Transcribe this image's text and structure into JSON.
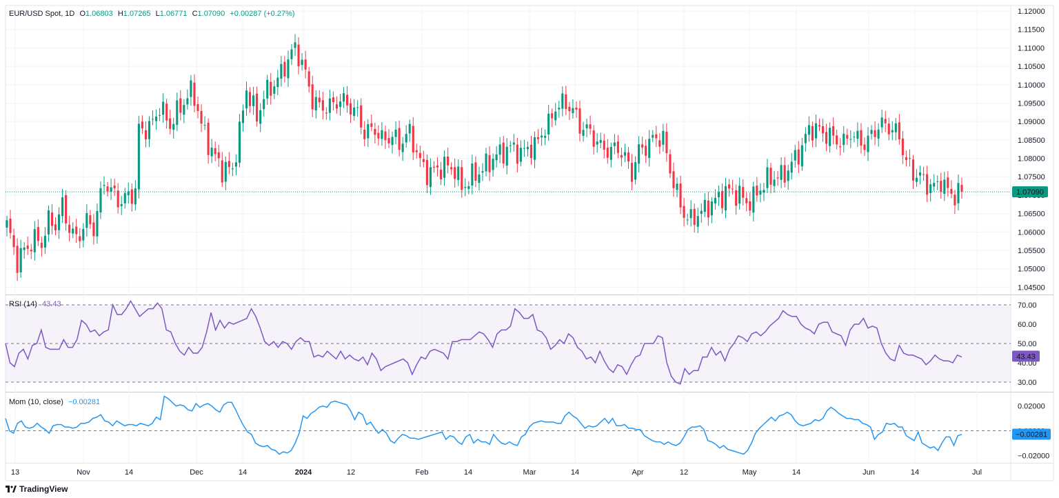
{
  "header": {
    "symbol": "EUR/USD Spot, 1D",
    "o_label": "O",
    "o_value": "1.06803",
    "h_label": "H",
    "h_value": "1.07265",
    "l_label": "L",
    "l_value": "1.06771",
    "c_label": "C",
    "c_value": "1.07090",
    "change": "+0.00287 (+0.27%)"
  },
  "rsi_legend": {
    "label": "RSI (14)",
    "value": "43.43"
  },
  "mom_legend": {
    "label": "Mom (10, close)",
    "value": "−0.00281"
  },
  "brand": {
    "name": "TradingView",
    "icon": "tradingview-logo-icon"
  },
  "colors": {
    "up": "#089981",
    "down": "#f23645",
    "rsi_line": "#7e57c2",
    "rsi_band": "#ede7f6",
    "mom_line": "#2196f3",
    "price_badge": "#089981",
    "mom_badge": "#2196f3",
    "rsi_badge": "#7e57c2"
  },
  "chart_data": [
    {
      "type": "candlestick",
      "title": "EUR/USD Spot, 1D",
      "x_tick_labels": [
        "13",
        "Nov",
        "14",
        "Dec",
        "14",
        "2024",
        "12",
        "Feb",
        "14",
        "Mar",
        "14",
        "Apr",
        "12",
        "May",
        "14",
        "Jun",
        "14",
        "Jul"
      ],
      "y_tick_labels": [
        "1.12000",
        "1.11500",
        "1.11000",
        "1.10500",
        "1.10000",
        "1.09500",
        "1.09000",
        "1.08500",
        "1.08000",
        "1.07500",
        "1.07000",
        "1.06500",
        "1.06000",
        "1.05500",
        "1.05000",
        "1.04500"
      ],
      "ylim": [
        1.043,
        1.1215
      ],
      "last_price": "1.07090",
      "grid": true,
      "anchors": [
        [
          0,
          1.062
        ],
        [
          3,
          1.052
        ],
        [
          5,
          1.055
        ],
        [
          8,
          1.058
        ],
        [
          10,
          1.057
        ],
        [
          12,
          1.063
        ],
        [
          14,
          1.062
        ],
        [
          16,
          1.067
        ],
        [
          18,
          1.061
        ],
        [
          20,
          1.058
        ],
        [
          23,
          1.063
        ],
        [
          25,
          1.061
        ],
        [
          28,
          1.074
        ],
        [
          30,
          1.071
        ],
        [
          33,
          1.068
        ],
        [
          35,
          1.07
        ],
        [
          37,
          1.071
        ],
        [
          38,
          1.088
        ],
        [
          41,
          1.088
        ],
        [
          44,
          1.094
        ],
        [
          47,
          1.089
        ],
        [
          50,
          1.094
        ],
        [
          53,
          1.098
        ],
        [
          54,
          1.097
        ],
        [
          56,
          1.089
        ],
        [
          59,
          1.082
        ],
        [
          62,
          1.077
        ],
        [
          65,
          1.077
        ],
        [
          67,
          1.087
        ],
        [
          69,
          1.099
        ],
        [
          72,
          1.091
        ],
        [
          74,
          1.097
        ],
        [
          76,
          1.099
        ],
        [
          79,
          1.103
        ],
        [
          81,
          1.107
        ],
        [
          83,
          1.11
        ],
        [
          85,
          1.106
        ],
        [
          88,
          1.096
        ],
        [
          90,
          1.094
        ],
        [
          93,
          1.094
        ],
        [
          96,
          1.096
        ],
        [
          99,
          1.094
        ],
        [
          101,
          1.092
        ],
        [
          103,
          1.087
        ],
        [
          106,
          1.088
        ],
        [
          108,
          1.085
        ],
        [
          111,
          1.086
        ],
        [
          113,
          1.084
        ],
        [
          116,
          1.087
        ],
        [
          119,
          1.079
        ],
        [
          121,
          1.076
        ],
        [
          124,
          1.077
        ],
        [
          126,
          1.078
        ],
        [
          129,
          1.077
        ],
        [
          131,
          1.072
        ],
        [
          134,
          1.075
        ],
        [
          137,
          1.077
        ],
        [
          140,
          1.08
        ],
        [
          143,
          1.082
        ],
        [
          146,
          1.083
        ],
        [
          148,
          1.081
        ],
        [
          150,
          1.083
        ],
        [
          152,
          1.083
        ],
        [
          154,
          1.087
        ],
        [
          156,
          1.089
        ],
        [
          158,
          1.094
        ],
        [
          161,
          1.095
        ],
        [
          163,
          1.093
        ],
        [
          165,
          1.089
        ],
        [
          168,
          1.087
        ],
        [
          171,
          1.083
        ],
        [
          174,
          1.082
        ],
        [
          176,
          1.083
        ],
        [
          178,
          1.08
        ],
        [
          180,
          1.076
        ],
        [
          182,
          1.082
        ],
        [
          185,
          1.084
        ],
        [
          187,
          1.086
        ],
        [
          189,
          1.085
        ],
        [
          191,
          1.077
        ],
        [
          193,
          1.07
        ],
        [
          195,
          1.065
        ],
        [
          197,
          1.063
        ],
        [
          199,
          1.065
        ],
        [
          201,
          1.066
        ],
        [
          203,
          1.068
        ],
        [
          205,
          1.069
        ],
        [
          207,
          1.071
        ],
        [
          209,
          1.071
        ],
        [
          211,
          1.07
        ],
        [
          213,
          1.068
        ],
        [
          215,
          1.069
        ],
        [
          217,
          1.072
        ],
        [
          219,
          1.074
        ],
        [
          221,
          1.075
        ],
        [
          223,
          1.075
        ],
        [
          225,
          1.077
        ],
        [
          227,
          1.08
        ],
        [
          229,
          1.083
        ],
        [
          231,
          1.088
        ],
        [
          233,
          1.088
        ],
        [
          235,
          1.087
        ],
        [
          237,
          1.086
        ],
        [
          239,
          1.085
        ],
        [
          241,
          1.084
        ],
        [
          243,
          1.087
        ],
        [
          245,
          1.085
        ],
        [
          247,
          1.084
        ],
        [
          249,
          1.086
        ],
        [
          251,
          1.089
        ],
        [
          253,
          1.089
        ],
        [
          255,
          1.088
        ],
        [
          257,
          1.086
        ],
        [
          259,
          1.079
        ],
        [
          261,
          1.076
        ],
        [
          263,
          1.075
        ],
        [
          265,
          1.073
        ],
        [
          267,
          1.072
        ],
        [
          269,
          1.074
        ],
        [
          271,
          1.071
        ],
        [
          273,
          1.07
        ],
        [
          275,
          1.071
        ]
      ],
      "close": 1.0709
    },
    {
      "type": "line",
      "title": "RSI (14)",
      "y_tick_labels": [
        "70.00",
        "60.00",
        "50.00",
        "40.00",
        "30.00"
      ],
      "ylim": [
        25,
        75
      ],
      "last_value": "43.43",
      "values": [
        50,
        40,
        38,
        45,
        47,
        42,
        49,
        50,
        57,
        48,
        47,
        47,
        47,
        52,
        48,
        48,
        52,
        62,
        60,
        56,
        57,
        54,
        56,
        57,
        70,
        65,
        65,
        68,
        72,
        68,
        64,
        66,
        68,
        68,
        71,
        68,
        57,
        56,
        50,
        46,
        44,
        48,
        45,
        45,
        48,
        56,
        66,
        57,
        62,
        58,
        61,
        60,
        61,
        62,
        63,
        68,
        64,
        58,
        51,
        49,
        51,
        48,
        51,
        50,
        47,
        51,
        53,
        51,
        51,
        43,
        44,
        43,
        46,
        44,
        42,
        46,
        42,
        44,
        42,
        41,
        43,
        39,
        45,
        42,
        36,
        38,
        39,
        40,
        41,
        42,
        40,
        34,
        39,
        43,
        42,
        46,
        47,
        46,
        45,
        42,
        51,
        51,
        52,
        52,
        52,
        54,
        56,
        55,
        52,
        48,
        55,
        57,
        57,
        59,
        68,
        66,
        63,
        63,
        65,
        57,
        56,
        53,
        47,
        49,
        52,
        50,
        55,
        53,
        48,
        46,
        42,
        43,
        40,
        46,
        41,
        37,
        35,
        39,
        38,
        34,
        39,
        43,
        44,
        50,
        50,
        50,
        54,
        53,
        40,
        33,
        30,
        29,
        37,
        34,
        36,
        36,
        43,
        43,
        48,
        44,
        46,
        41,
        47,
        50,
        54,
        53,
        51,
        55,
        56,
        54,
        56,
        59,
        61,
        63,
        67,
        65,
        64,
        64,
        60,
        58,
        57,
        55,
        60,
        61,
        61,
        56,
        55,
        54,
        49,
        57,
        60,
        60,
        63,
        58,
        59,
        58,
        50,
        45,
        42,
        41,
        49,
        45,
        44,
        44,
        43,
        42,
        39,
        41,
        44,
        42,
        41,
        41,
        40,
        44,
        43
      ]
    },
    {
      "type": "line",
      "title": "Mom (10, close)",
      "y_tick_labels": [
        "0.02000",
        "0.00000",
        "-0.02000"
      ],
      "ylim": [
        -0.026,
        0.031
      ],
      "last_value": "−0.00281",
      "values": [
        0.01,
        0.0,
        -0.002,
        0.006,
        0.008,
        0.003,
        0.002,
        0.003,
        0.006,
        0.003,
        0.001,
        -0.002,
        0.004,
        0.005,
        0.005,
        0.003,
        0.003,
        0.002,
        0.003,
        0.006,
        0.006,
        0.007,
        0.01,
        0.011,
        0.013,
        0.008,
        0.007,
        0.004,
        0.008,
        0.006,
        0.004,
        0.005,
        0.005,
        0.004,
        0.006,
        0.005,
        0.004,
        0.006,
        0.011,
        0.009,
        0.028,
        0.026,
        0.023,
        0.02,
        0.021,
        0.02,
        0.017,
        0.016,
        0.022,
        0.019,
        0.021,
        0.022,
        0.02,
        0.017,
        0.015,
        0.021,
        0.023,
        0.023,
        0.017,
        0.01,
        0.004,
        -0.001,
        -0.003,
        -0.01,
        -0.012,
        -0.013,
        -0.012,
        -0.015,
        -0.016,
        -0.019,
        -0.017,
        -0.018,
        -0.016,
        -0.01,
        -0.002,
        0.012,
        0.01,
        0.014,
        0.016,
        0.019,
        0.02,
        0.019,
        0.023,
        0.024,
        0.023,
        0.022,
        0.021,
        0.016,
        0.009,
        0.015,
        0.013,
        0.005,
        0.007,
        0.002,
        -0.002,
        0.001,
        -0.002,
        -0.008,
        -0.01,
        -0.006,
        -0.003,
        -0.004,
        -0.006,
        -0.006,
        -0.007,
        -0.006,
        -0.005,
        -0.004,
        -0.003,
        -0.002,
        -0.001,
        -0.007,
        -0.004,
        -0.005,
        -0.009,
        -0.011,
        -0.005,
        -0.003,
        -0.01,
        -0.007,
        -0.009,
        -0.009,
        -0.011,
        -0.003,
        -0.007,
        -0.01,
        -0.011,
        -0.009,
        -0.011,
        -0.012,
        -0.005,
        -0.003,
        0.003,
        0.006,
        0.007,
        0.008,
        0.007,
        0.007,
        0.007,
        0.006,
        0.006,
        0.012,
        0.015,
        0.012,
        0.01,
        0.006,
        0.002,
        0.004,
        0.003,
        0.004,
        0.007,
        0.01,
        0.006,
        0.01,
        0.004,
        0.004,
        0.005,
        0.002,
        0.002,
        0.001,
        0.001,
        -0.004,
        -0.006,
        -0.008,
        -0.009,
        -0.009,
        -0.011,
        -0.009,
        -0.011,
        -0.012,
        -0.01,
        -0.005,
        0.001,
        0.003,
        0.003,
        0.004,
        0.001,
        -0.008,
        -0.009,
        -0.011,
        -0.014,
        -0.012,
        -0.015,
        -0.016,
        -0.017,
        -0.018,
        -0.019,
        -0.016,
        -0.01,
        -0.002,
        0.002,
        0.005,
        0.008,
        0.011,
        0.008,
        0.012,
        0.013,
        0.015,
        0.013,
        0.008,
        0.005,
        0.004,
        0.005,
        0.006,
        0.009,
        0.008,
        0.01,
        0.016,
        0.019,
        0.017,
        0.014,
        0.012,
        0.01,
        0.01,
        0.009,
        0.009,
        0.006,
        0.005,
        0.003,
        -0.007,
        -0.003,
        -0.001,
        0.006,
        0.005,
        0.006,
        0.003,
        0.003,
        -0.004,
        -0.006,
        -0.008,
        -0.001,
        -0.01,
        -0.012,
        -0.014,
        -0.013,
        -0.016,
        -0.01,
        -0.005,
        -0.005,
        -0.012,
        -0.004,
        -0.003
      ]
    }
  ]
}
